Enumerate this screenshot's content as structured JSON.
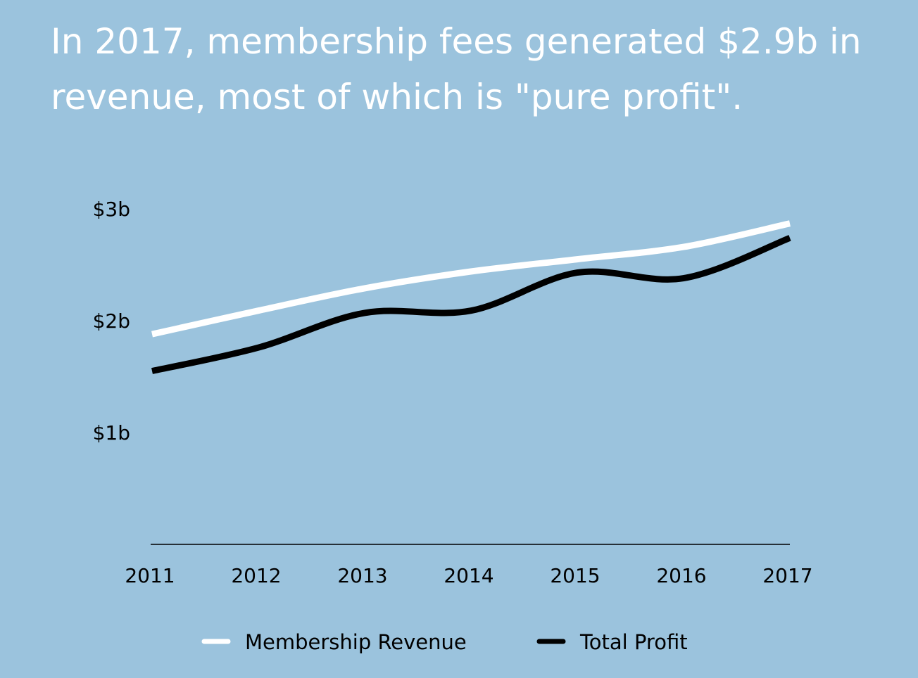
{
  "colors": {
    "background": "#9bc3dd",
    "title_text": "#ffffff",
    "axis": "#000000",
    "membership_revenue": "#ffffff",
    "total_profit": "#000000"
  },
  "chart_data": {
    "type": "line",
    "title": "In 2017, membership fees generated $2.9b in revenue, most of which is \"pure profit\".",
    "xlabel": "",
    "ylabel": "",
    "x": [
      "2011",
      "2012",
      "2013",
      "2014",
      "2015",
      "2016",
      "2017"
    ],
    "series": [
      {
        "name": "Membership Revenue",
        "color": "#ffffff",
        "values": [
          1.88,
          2.09,
          2.29,
          2.44,
          2.55,
          2.66,
          2.87
        ]
      },
      {
        "name": "Total Profit",
        "color": "#000000",
        "values": [
          1.55,
          1.76,
          2.07,
          2.09,
          2.43,
          2.38,
          2.74
        ]
      }
    ],
    "ylim": [
      0,
      3
    ],
    "y_ticks": [
      {
        "value": 3,
        "label": "$3b"
      },
      {
        "value": 2,
        "label": "$2b"
      },
      {
        "value": 1,
        "label": "$1b"
      }
    ],
    "grid": false,
    "legend_position": "bottom"
  }
}
